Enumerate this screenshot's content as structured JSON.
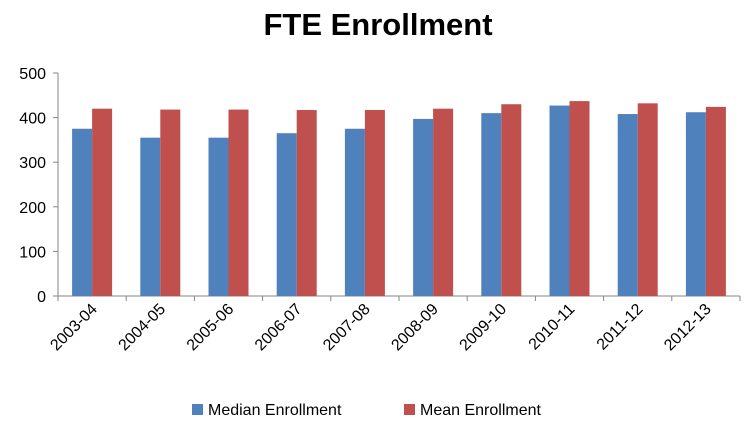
{
  "chart_data": {
    "type": "bar",
    "title": "FTE Enrollment",
    "xlabel": "",
    "ylabel": "",
    "categories": [
      "2003-04",
      "2004-05",
      "2005-06",
      "2006-07",
      "2007-08",
      "2008-09",
      "2009-10",
      "2010-11",
      "2011-12",
      "2012-13"
    ],
    "series": [
      {
        "name": "Median Enrollment",
        "color": "#4F81BD",
        "values": [
          375,
          355,
          355,
          365,
          375,
          397,
          410,
          427,
          408,
          412
        ]
      },
      {
        "name": "Mean Enrollment",
        "color": "#C0504D",
        "values": [
          420,
          418,
          418,
          417,
          417,
          420,
          430,
          437,
          432,
          424
        ]
      }
    ],
    "ylim": [
      0,
      500
    ],
    "yticks": [
      0,
      100,
      200,
      300,
      400,
      500
    ],
    "grid": false,
    "legend_position": "bottom"
  }
}
